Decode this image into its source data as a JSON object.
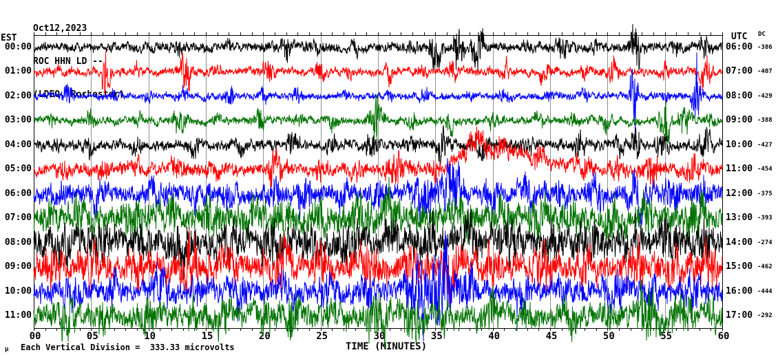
{
  "header": {
    "date": "Oct12,2023",
    "station": "ROC HHN LD --",
    "network": "(LDEO, Rochester)"
  },
  "left_axis": {
    "label": "EST"
  },
  "right_axis": {
    "label": "UTC",
    "dc_label": "DC"
  },
  "x_axis": {
    "ticks": [
      "00",
      "05",
      "10",
      "15",
      "20",
      "25",
      "30",
      "35",
      "40",
      "45",
      "50",
      "55",
      "60"
    ],
    "label": "TIME (MINUTES)"
  },
  "footer": {
    "mu": "μ",
    "note": "Each Vertical Division =  333.33 microvolts"
  },
  "colors": {
    "trace_cycle": [
      "#000000",
      "#ff0000",
      "#0000ff",
      "#007200"
    ],
    "grid": "#8f8f8f",
    "axis": "#000000",
    "background": "#ffffff"
  },
  "chart_data": {
    "type": "line",
    "subtype": "seismogram-helicorder",
    "title": "ROC HHN LD -- (LDEO, Rochester) Oct12,2023",
    "xlabel": "TIME (MINUTES)",
    "x_range_minutes": [
      0,
      60
    ],
    "minutes_per_line": 60,
    "grid": "vertical lines every 5 minutes",
    "scale_note": "Each Vertical Division =  333.33 microvolts",
    "rows": [
      {
        "est": "00:00",
        "utc": "06:00",
        "dc": "-386",
        "color": "#000000",
        "base_amp": 8,
        "bursts": [
          [
            12.5,
            12,
            0.4
          ],
          [
            17,
            8,
            0.3
          ],
          [
            22,
            18,
            0.5
          ],
          [
            24.5,
            10,
            0.8
          ],
          [
            28,
            6,
            0.5
          ],
          [
            33,
            10,
            0.4
          ],
          [
            35,
            30,
            0.5
          ],
          [
            37,
            38,
            0.4
          ],
          [
            38.7,
            40,
            0.5
          ],
          [
            43,
            8,
            0.4
          ],
          [
            46,
            22,
            0.5
          ],
          [
            49,
            8,
            0.3
          ],
          [
            52.5,
            34,
            0.5
          ],
          [
            56,
            10,
            0.4
          ],
          [
            58.5,
            14,
            0.4
          ]
        ]
      },
      {
        "est": "01:00",
        "utc": "07:00",
        "dc": "-407",
        "color": "#ff0000",
        "base_amp": 7,
        "bursts": [
          [
            2,
            6,
            0.4
          ],
          [
            6.3,
            30,
            0.4
          ],
          [
            9,
            8,
            0.3
          ],
          [
            13.3,
            32,
            0.5
          ],
          [
            16,
            12,
            0.3
          ],
          [
            20.5,
            16,
            0.5
          ],
          [
            25,
            16,
            0.4
          ],
          [
            27.5,
            8,
            0.3
          ],
          [
            31,
            16,
            0.4
          ],
          [
            34,
            8,
            0.3
          ],
          [
            36.5,
            14,
            0.4
          ],
          [
            41,
            14,
            0.4
          ],
          [
            44.5,
            16,
            0.4
          ],
          [
            48,
            8,
            0.3
          ],
          [
            50.5,
            16,
            0.4
          ],
          [
            55,
            10,
            0.4
          ],
          [
            58.5,
            24,
            0.5
          ]
        ]
      },
      {
        "est": "02:00",
        "utc": "08:00",
        "dc": "-429",
        "color": "#0000ff",
        "base_amp": 6,
        "bursts": [
          [
            3,
            16,
            0.4
          ],
          [
            7,
            8,
            0.3
          ],
          [
            10,
            6,
            0.3
          ],
          [
            13,
            14,
            0.4
          ],
          [
            17,
            22,
            0.4
          ],
          [
            20,
            8,
            0.3
          ],
          [
            23,
            14,
            0.4
          ],
          [
            27,
            6,
            0.3
          ],
          [
            31,
            8,
            0.3
          ],
          [
            34,
            12,
            0.4
          ],
          [
            38,
            6,
            0.3
          ],
          [
            41,
            12,
            0.4
          ],
          [
            45,
            8,
            0.3
          ],
          [
            48,
            8,
            0.3
          ],
          [
            52.3,
            70,
            0.3
          ],
          [
            55,
            10,
            0.3
          ],
          [
            57.8,
            55,
            0.35
          ]
        ]
      },
      {
        "est": "03:00",
        "utc": "09:00",
        "dc": "-388",
        "color": "#007200",
        "base_amp": 7,
        "bursts": [
          [
            1.5,
            8,
            0.3
          ],
          [
            5,
            16,
            0.4
          ],
          [
            9,
            10,
            0.4
          ],
          [
            12.7,
            22,
            0.5
          ],
          [
            16,
            8,
            0.3
          ],
          [
            19.7,
            18,
            0.4
          ],
          [
            23,
            8,
            0.4
          ],
          [
            26,
            10,
            0.4
          ],
          [
            29.8,
            42,
            0.5
          ],
          [
            33,
            10,
            0.4
          ],
          [
            36.3,
            16,
            0.4
          ],
          [
            40,
            10,
            0.4
          ],
          [
            44,
            12,
            0.4
          ],
          [
            47,
            8,
            0.3
          ],
          [
            50,
            14,
            0.4
          ],
          [
            55,
            40,
            0.4
          ],
          [
            56.7,
            24,
            0.5
          ],
          [
            59,
            10,
            0.4
          ]
        ]
      },
      {
        "est": "04:00",
        "utc": "10:00",
        "dc": "-427",
        "color": "#000000",
        "base_amp": 9,
        "bursts": [
          [
            2,
            8,
            0.4
          ],
          [
            5,
            10,
            0.4
          ],
          [
            9,
            8,
            0.4
          ],
          [
            14,
            18,
            0.5
          ],
          [
            18,
            10,
            0.4
          ],
          [
            22.7,
            20,
            0.5
          ],
          [
            26,
            10,
            0.4
          ],
          [
            29.5,
            18,
            0.5
          ],
          [
            33,
            12,
            0.5
          ],
          [
            35.5,
            20,
            0.5
          ],
          [
            39,
            18,
            0.6
          ],
          [
            43,
            10,
            0.4
          ],
          [
            47.5,
            18,
            0.5
          ],
          [
            51,
            12,
            0.4
          ],
          [
            52.5,
            28,
            0.4
          ],
          [
            54.7,
            22,
            0.5
          ],
          [
            58.5,
            26,
            0.5
          ]
        ]
      },
      {
        "est": "05:00",
        "utc": "11:00",
        "dc": "-454",
        "color": "#ff0000",
        "base_amp": 11,
        "drift": [
          [
            36,
            0
          ],
          [
            37.5,
            -25
          ],
          [
            38.8,
            -45
          ],
          [
            39.8,
            -28
          ],
          [
            40.8,
            -35
          ],
          [
            42,
            -25
          ],
          [
            43.5,
            -20
          ],
          [
            45,
            -12
          ],
          [
            47,
            -5
          ],
          [
            49,
            0
          ]
        ],
        "bursts": [
          [
            2.5,
            10,
            0.5
          ],
          [
            6,
            12,
            0.5
          ],
          [
            9,
            8,
            0.4
          ],
          [
            12.5,
            16,
            0.5
          ],
          [
            16,
            10,
            0.5
          ],
          [
            21,
            20,
            0.6
          ],
          [
            25,
            12,
            0.5
          ],
          [
            28,
            10,
            0.5
          ],
          [
            31.5,
            22,
            0.7
          ],
          [
            35,
            14,
            0.5
          ],
          [
            38.5,
            18,
            0.9
          ],
          [
            41,
            14,
            0.8
          ],
          [
            44,
            14,
            0.6
          ],
          [
            47.8,
            24,
            0.6
          ],
          [
            51,
            14,
            0.5
          ],
          [
            54,
            20,
            0.6
          ],
          [
            57.5,
            18,
            0.6
          ]
        ]
      },
      {
        "est": "06:00",
        "utc": "12:00",
        "dc": "-375",
        "color": "#0000ff",
        "base_amp": 15,
        "bursts": [
          [
            2,
            10,
            0.6
          ],
          [
            5.5,
            18,
            0.6
          ],
          [
            10.8,
            22,
            0.7
          ],
          [
            14,
            12,
            0.6
          ],
          [
            17,
            18,
            0.6
          ],
          [
            21,
            14,
            0.6
          ],
          [
            23.5,
            20,
            0.7
          ],
          [
            27,
            14,
            0.6
          ],
          [
            30,
            16,
            0.6
          ],
          [
            34,
            30,
            0.9
          ],
          [
            36.5,
            40,
            0.8
          ],
          [
            40,
            18,
            0.7
          ],
          [
            43,
            22,
            0.7
          ],
          [
            46,
            16,
            0.6
          ],
          [
            49,
            24,
            0.7
          ],
          [
            52.5,
            28,
            0.8
          ],
          [
            55.5,
            22,
            0.7
          ],
          [
            58.5,
            20,
            0.6
          ]
        ]
      },
      {
        "est": "07:00",
        "utc": "13:00",
        "dc": "-393",
        "color": "#007200",
        "base_amp": 22,
        "bursts": [
          [
            1.5,
            14,
            0.6
          ],
          [
            4,
            20,
            0.7
          ],
          [
            8.5,
            24,
            0.8
          ],
          [
            12,
            16,
            0.6
          ],
          [
            15.5,
            20,
            0.7
          ],
          [
            19,
            16,
            0.6
          ],
          [
            21.5,
            24,
            0.7
          ],
          [
            25,
            14,
            0.6
          ],
          [
            28.5,
            30,
            0.9
          ],
          [
            31,
            26,
            0.8
          ],
          [
            34,
            16,
            0.6
          ],
          [
            37.5,
            24,
            0.7
          ],
          [
            41,
            16,
            0.6
          ],
          [
            44,
            22,
            0.7
          ],
          [
            47,
            14,
            0.6
          ],
          [
            50.5,
            24,
            0.8
          ],
          [
            53.5,
            18,
            0.6
          ],
          [
            57.5,
            24,
            0.8
          ]
        ]
      },
      {
        "est": "08:00",
        "utc": "14:00",
        "dc": "-274",
        "color": "#000000",
        "base_amp": 23,
        "bursts": [
          [
            2.5,
            16,
            0.7
          ],
          [
            6,
            22,
            0.8
          ],
          [
            9.5,
            14,
            0.6
          ],
          [
            13,
            24,
            0.8
          ],
          [
            17,
            16,
            0.7
          ],
          [
            20.5,
            20,
            0.7
          ],
          [
            24,
            18,
            0.7
          ],
          [
            27.5,
            22,
            0.8
          ],
          [
            31,
            18,
            0.7
          ],
          [
            34.5,
            26,
            0.9
          ],
          [
            38,
            20,
            0.7
          ],
          [
            41.5,
            22,
            0.8
          ],
          [
            45,
            16,
            0.7
          ],
          [
            48.5,
            24,
            0.8
          ],
          [
            52,
            18,
            0.7
          ],
          [
            55.5,
            22,
            0.8
          ],
          [
            58.5,
            18,
            0.7
          ]
        ]
      },
      {
        "est": "09:00",
        "utc": "15:00",
        "dc": "-462",
        "color": "#ff0000",
        "base_amp": 22,
        "bursts": [
          [
            1.5,
            14,
            0.6
          ],
          [
            5.2,
            24,
            0.8
          ],
          [
            9,
            16,
            0.7
          ],
          [
            13.5,
            28,
            0.9
          ],
          [
            17,
            16,
            0.7
          ],
          [
            21.5,
            24,
            0.8
          ],
          [
            25,
            16,
            0.7
          ],
          [
            29,
            26,
            0.9
          ],
          [
            33,
            18,
            0.7
          ],
          [
            36.5,
            28,
            0.9
          ],
          [
            40,
            18,
            0.7
          ],
          [
            44.5,
            26,
            0.8
          ],
          [
            48,
            16,
            0.7
          ],
          [
            52.5,
            26,
            0.9
          ],
          [
            56,
            18,
            0.7
          ],
          [
            58.8,
            22,
            0.7
          ]
        ]
      },
      {
        "est": "10:00",
        "utc": "16:00",
        "dc": "-444",
        "color": "#0000ff",
        "base_amp": 18,
        "bursts": [
          [
            3.5,
            18,
            0.7
          ],
          [
            7,
            12,
            0.6
          ],
          [
            11,
            22,
            0.8
          ],
          [
            14.5,
            14,
            0.6
          ],
          [
            18,
            18,
            0.7
          ],
          [
            22,
            14,
            0.6
          ],
          [
            25.5,
            20,
            0.8
          ],
          [
            29,
            16,
            0.7
          ],
          [
            33.5,
            45,
            1.0
          ],
          [
            35.5,
            75,
            0.9
          ],
          [
            38,
            24,
            0.8
          ],
          [
            42.5,
            22,
            0.8
          ],
          [
            46,
            14,
            0.6
          ],
          [
            50.8,
            26,
            0.9
          ],
          [
            54,
            16,
            0.7
          ],
          [
            57.5,
            20,
            0.8
          ]
        ]
      },
      {
        "est": "11:00",
        "utc": "17:00",
        "dc": "-292",
        "color": "#007200",
        "base_amp": 18,
        "bursts": [
          [
            2.8,
            24,
            0.8
          ],
          [
            6,
            14,
            0.6
          ],
          [
            10,
            22,
            0.8
          ],
          [
            13.5,
            14,
            0.6
          ],
          [
            16.5,
            18,
            0.7
          ],
          [
            20,
            14,
            0.6
          ],
          [
            22.5,
            24,
            0.8
          ],
          [
            26,
            14,
            0.6
          ],
          [
            30,
            30,
            1.0
          ],
          [
            33,
            26,
            0.9
          ],
          [
            36,
            16,
            0.7
          ],
          [
            39.8,
            22,
            0.8
          ],
          [
            43,
            14,
            0.6
          ],
          [
            46.5,
            20,
            0.8
          ],
          [
            50,
            16,
            0.7
          ],
          [
            53.5,
            30,
            1.0
          ],
          [
            56.5,
            22,
            0.8
          ],
          [
            59,
            16,
            0.6
          ]
        ]
      }
    ]
  }
}
